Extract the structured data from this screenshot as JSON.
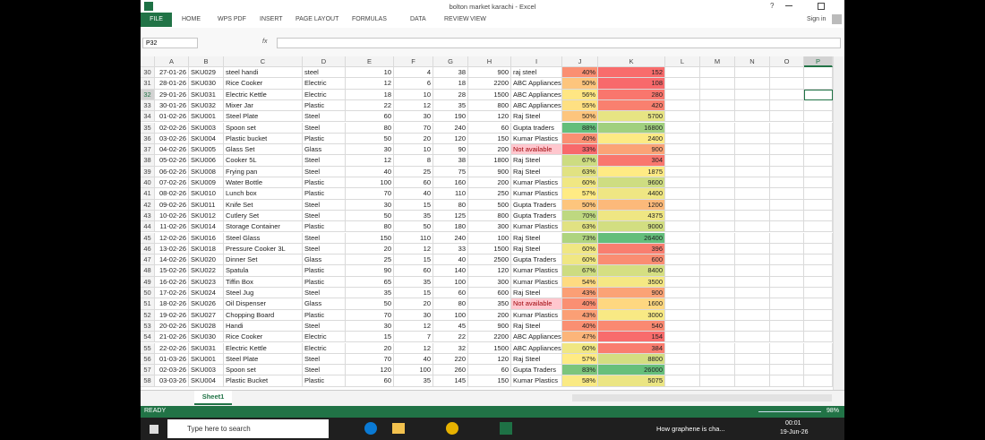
{
  "window": {
    "title": "bolton market karachi - Excel",
    "help": "?",
    "sign_in": "Sign in"
  },
  "ribbon": {
    "file": "FILE",
    "tabs": [
      "HOME",
      "WPS PDF",
      "INSERT",
      "PAGE LAYOUT",
      "FORMULAS",
      "DATA",
      "REVIEW",
      "VIEW"
    ]
  },
  "formula_bar": {
    "name_box": "P32",
    "fx": "fx"
  },
  "sheet": {
    "columns": [
      "A",
      "B",
      "C",
      "D",
      "E",
      "F",
      "G",
      "H",
      "I",
      "J",
      "K",
      "L",
      "M",
      "N",
      "O",
      "P"
    ],
    "selected_column": "P",
    "row_numbers": [
      30,
      31,
      32,
      33,
      34,
      35,
      36,
      37,
      38,
      39,
      40,
      41,
      42,
      43,
      44,
      45,
      46,
      47,
      48,
      49,
      50,
      51,
      52,
      53,
      54,
      55,
      56,
      57,
      58
    ],
    "selected_row": 32,
    "rows": [
      [
        "27-01-26",
        "SKU029",
        "steel handi",
        "steel",
        10,
        4,
        38,
        900,
        "raj steel",
        "40%",
        152
      ],
      [
        "28-01-26",
        "SKU030",
        "Rice Cooker",
        "Electric",
        12,
        6,
        18,
        2200,
        "ABC Appliances",
        "50%",
        108
      ],
      [
        "29-01-26",
        "SKU031",
        "Electric Kettle",
        "Electric",
        18,
        10,
        28,
        1500,
        "ABC Appliances",
        "56%",
        280
      ],
      [
        "30-01-26",
        "SKU032",
        "Mixer Jar",
        "Plastic",
        22,
        12,
        35,
        800,
        "ABC Appliances",
        "55%",
        420
      ],
      [
        "01-02-26",
        "SKU001",
        "Steel Plate",
        "Steel",
        60,
        30,
        190,
        120,
        "Raj Steel",
        "50%",
        5700
      ],
      [
        "02-02-26",
        "SKU003",
        "Spoon set",
        "Steel",
        80,
        70,
        240,
        60,
        "Gupta traders",
        "88%",
        16800
      ],
      [
        "03-02-26",
        "SKU004",
        "Plastic bucket",
        "Plastic",
        50,
        20,
        120,
        150,
        "Kumar Plastics",
        "40%",
        2400
      ],
      [
        "04-02-26",
        "SKU005",
        "Glass Set",
        "Glass",
        30,
        10,
        90,
        200,
        "Not available",
        "33%",
        900
      ],
      [
        "05-02-26",
        "SKU006",
        "Cooker 5L",
        "Steel",
        12,
        8,
        38,
        1800,
        "Raj Steel",
        "67%",
        304
      ],
      [
        "06-02-26",
        "SKU008",
        "Frying pan",
        "Steel",
        40,
        25,
        75,
        900,
        "Raj Steel",
        "63%",
        1875
      ],
      [
        "07-02-26",
        "SKU009",
        "Water Bottle",
        "Plastic",
        100,
        60,
        160,
        200,
        "Kumar Plastics",
        "60%",
        9600
      ],
      [
        "08-02-26",
        "SKU010",
        "Lunch box",
        "Plastic",
        70,
        40,
        110,
        250,
        "Kumar Plastics",
        "57%",
        4400
      ],
      [
        "09-02-26",
        "SKU011",
        "Knife Set",
        "Steel",
        30,
        15,
        80,
        500,
        "Gupta Traders",
        "50%",
        1200
      ],
      [
        "10-02-26",
        "SKU012",
        "Cutlery Set",
        "Steel",
        50,
        35,
        125,
        800,
        "Gupta Traders",
        "70%",
        4375
      ],
      [
        "11-02-26",
        "SKU014",
        "Storage Container",
        "Plastic",
        80,
        50,
        180,
        300,
        "Kumar Plastics",
        "63%",
        9000
      ],
      [
        "12-02-26",
        "SKU016",
        "Steel Glass",
        "Steel",
        150,
        110,
        240,
        100,
        "Raj Steel",
        "73%",
        26400
      ],
      [
        "13-02-26",
        "SKU018",
        "Pressure Cooker 3L",
        "Steel",
        20,
        12,
        33,
        1500,
        "Raj Steel",
        "60%",
        396
      ],
      [
        "14-02-26",
        "SKU020",
        "Dinner Set",
        "Glass",
        25,
        15,
        40,
        2500,
        "Gupta Traders",
        "60%",
        600
      ],
      [
        "15-02-26",
        "SKU022",
        "Spatula",
        "Plastic",
        90,
        60,
        140,
        120,
        "Kumar Plastics",
        "67%",
        8400
      ],
      [
        "16-02-26",
        "SKU023",
        "Tiffin Box",
        "Plastic",
        65,
        35,
        100,
        300,
        "Kumar Plastics",
        "54%",
        3500
      ],
      [
        "17-02-26",
        "SKU024",
        "Steel Jug",
        "Steel",
        35,
        15,
        60,
        600,
        "Raj Steel",
        "43%",
        900
      ],
      [
        "18-02-26",
        "SKU026",
        "Oil Dispenser",
        "Glass",
        50,
        20,
        80,
        350,
        "Not available",
        "40%",
        1600
      ],
      [
        "19-02-26",
        "SKU027",
        "Chopping Board",
        "Plastic",
        70,
        30,
        100,
        200,
        "Kumar Plastics",
        "43%",
        3000
      ],
      [
        "20-02-26",
        "SKU028",
        "Handi",
        "Steel",
        30,
        12,
        45,
        900,
        "Raj Steel",
        "40%",
        540
      ],
      [
        "21-02-26",
        "SKU030",
        "Rice Cooker",
        "Electric",
        15,
        7,
        22,
        2200,
        "ABC Appliances",
        "47%",
        154
      ],
      [
        "22-02-26",
        "SKU031",
        "Electric Kettle",
        "Electric",
        20,
        12,
        32,
        1500,
        "ABC Appliances",
        "60%",
        384
      ],
      [
        "01-03-26",
        "SKU001",
        "Steel Plate",
        "Steel",
        70,
        40,
        220,
        120,
        "Raj Steel",
        "57%",
        8800
      ],
      [
        "02-03-26",
        "SKU003",
        "Spoon set",
        "Steel",
        120,
        100,
        260,
        60,
        "Gupta Traders",
        "83%",
        26000
      ],
      [
        "03-03-26",
        "SKU004",
        "Plastic Bucket",
        "Plastic",
        60,
        35,
        145,
        150,
        "Kumar Plastics",
        "58%",
        5075
      ]
    ],
    "cell_fills": {
      "7.8": "#ffc7ce",
      "21.8": "#ffc7ce"
    },
    "color_scale": {
      "columns": [
        9,
        10
      ],
      "low": "#f8696b",
      "mid": "#ffeb84",
      "high": "#63be7b"
    }
  },
  "sheet_tab": "Sheet1",
  "status": {
    "mode": "READY",
    "zoom": "98%"
  },
  "taskbar": {
    "search": "Type here to search",
    "video": "How graphene is cha...",
    "time": "00:01",
    "date": "19-Jun-26"
  }
}
